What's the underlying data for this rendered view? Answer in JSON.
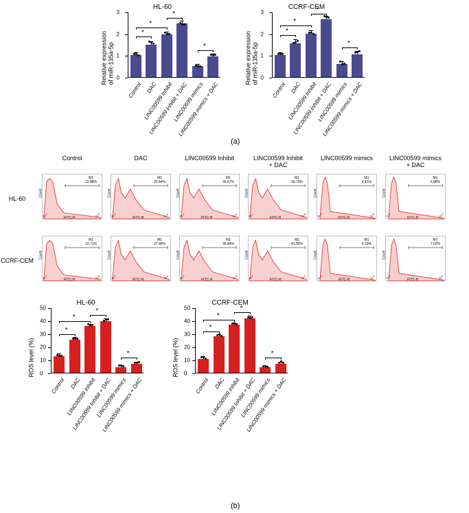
{
  "panel_a": {
    "label": "(a)",
    "charts": [
      {
        "title": "HL-60",
        "type": "bar",
        "ylabel": "Relative expression\nof miR-135a-5p",
        "ylim": [
          0,
          3
        ],
        "yticks": [
          0,
          1,
          2,
          3
        ],
        "categories": [
          "Control",
          "DAC",
          "LINC00599 Inhibit",
          "LINC00599 Inhibit + DAC",
          "LINC00599 mimics",
          "LINC00599 mimics + DAC"
        ],
        "values": [
          1.0,
          1.5,
          1.95,
          2.45,
          0.5,
          0.95
        ],
        "errors": [
          0.1,
          0.12,
          0.1,
          0.12,
          0.08,
          0.1
        ],
        "bar_color": "#4a4a8f",
        "bar_width": 0.7,
        "significance": [
          {
            "from": 0,
            "to": 1,
            "y": 1.9
          },
          {
            "from": 0,
            "to": 2,
            "y": 2.3
          },
          {
            "from": 2,
            "to": 3,
            "y": 2.75
          },
          {
            "from": 4,
            "to": 5,
            "y": 1.25
          }
        ]
      },
      {
        "title": "CCRF-CEM",
        "type": "bar",
        "ylabel": "Relative expression\nof miR-135a-5p",
        "ylim": [
          0,
          3
        ],
        "yticks": [
          0,
          1,
          2,
          3
        ],
        "categories": [
          "Control",
          "DAC",
          "LINC00599 Inhibit",
          "LINC00599 Inhibit + DAC",
          "LINC00599 mimics",
          "LINC00599 mimics + DAC"
        ],
        "values": [
          1.0,
          1.55,
          2.0,
          2.65,
          0.6,
          1.05
        ],
        "errors": [
          0.1,
          0.15,
          0.12,
          0.12,
          0.08,
          0.12
        ],
        "bar_color": "#4a4a8f",
        "bar_width": 0.7,
        "significance": [
          {
            "from": 0,
            "to": 1,
            "y": 1.95
          },
          {
            "from": 0,
            "to": 2,
            "y": 2.4
          },
          {
            "from": 2,
            "to": 3,
            "y": 2.95
          },
          {
            "from": 4,
            "to": 5,
            "y": 1.4
          }
        ]
      }
    ]
  },
  "panel_b": {
    "label": "(b)",
    "flow_headers": [
      "Control",
      "DAC",
      "LINC00599 Inhibit",
      "LINC00599 Inhibit\n+ DAC",
      "LINC00599 mimics",
      "LINC00599 mimics\n+ DAC"
    ],
    "rows": [
      {
        "label": "HL-60",
        "cells": [
          {
            "m1": "M1\n12.88%",
            "shape": "single"
          },
          {
            "m1": "M1\n25.44%",
            "shape": "double"
          },
          {
            "m1": "M1\n35.67%",
            "shape": "double"
          },
          {
            "m1": "M1\n39.70%",
            "shape": "double"
          },
          {
            "m1": "M1\n4.41%",
            "shape": "narrow"
          },
          {
            "m1": "M1\n6.98%",
            "shape": "narrow"
          }
        ]
      },
      {
        "label": "CCRF-CEM",
        "cells": [
          {
            "m1": "M1\n10.71%",
            "shape": "single"
          },
          {
            "m1": "M1\n27.90%",
            "shape": "double"
          },
          {
            "m1": "M1\n36.84%",
            "shape": "double"
          },
          {
            "m1": "M1\n41.80%",
            "shape": "double"
          },
          {
            "m1": "M1\n4.19%",
            "shape": "narrow"
          },
          {
            "m1": "M1\n7.02%",
            "shape": "narrow"
          }
        ]
      }
    ],
    "flow_fill": "#f8d0d0",
    "flow_stroke": "#e03030",
    "axis_label_x": "FITC-H",
    "axis_label_y": "Count",
    "ros_charts": [
      {
        "title": "HL-60",
        "type": "bar",
        "ylabel": "ROS level (%)",
        "ylim": [
          0,
          50
        ],
        "yticks": [
          0,
          10,
          20,
          30,
          40,
          50
        ],
        "categories": [
          "Control",
          "DAC",
          "LINC00599 Inhibit",
          "LINC00599 Inhibit + DAC",
          "LINC00599 mimics",
          "LINC00599 mimics + DAC"
        ],
        "values": [
          12.9,
          25.4,
          35.7,
          39.7,
          4.4,
          7.0
        ],
        "errors": [
          1.5,
          1.2,
          1.0,
          1.2,
          0.8,
          1.0
        ],
        "bar_color": "#d62020",
        "bar_width": 0.7,
        "significance": [
          {
            "from": 0,
            "to": 1,
            "y": 30
          },
          {
            "from": 0,
            "to": 2,
            "y": 40
          },
          {
            "from": 2,
            "to": 3,
            "y": 45
          },
          {
            "from": 4,
            "to": 5,
            "y": 12
          }
        ]
      },
      {
        "title": "CCRF-CEM",
        "type": "bar",
        "ylabel": "ROS level (%)",
        "ylim": [
          0,
          50
        ],
        "yticks": [
          0,
          10,
          20,
          30,
          40,
          50
        ],
        "categories": [
          "Control",
          "DAC",
          "LINC00599 Inhibit",
          "LINC00599 Inhibit + DAC",
          "LINC00599 mimics",
          "LINC00599 mimics + DAC"
        ],
        "values": [
          10.7,
          27.9,
          36.8,
          41.8,
          4.2,
          7.0
        ],
        "errors": [
          1.5,
          1.2,
          1.0,
          1.2,
          0.8,
          1.0
        ],
        "bar_color": "#d62020",
        "bar_width": 0.7,
        "significance": [
          {
            "from": 0,
            "to": 1,
            "y": 32
          },
          {
            "from": 0,
            "to": 2,
            "y": 41
          },
          {
            "from": 2,
            "to": 3,
            "y": 47
          },
          {
            "from": 4,
            "to": 5,
            "y": 12
          }
        ]
      }
    ]
  }
}
